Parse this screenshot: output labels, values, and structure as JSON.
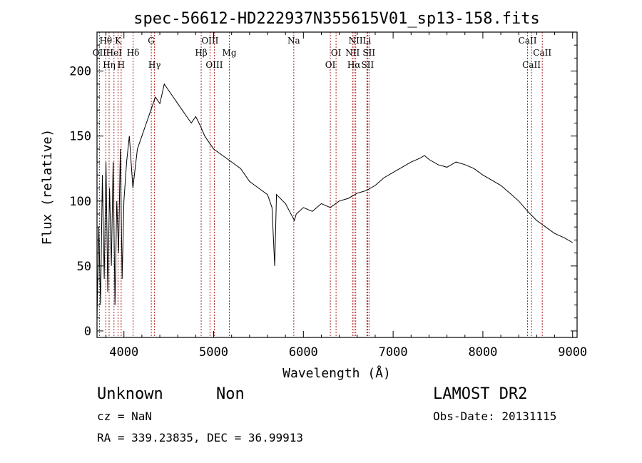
{
  "chart_data": {
    "type": "line",
    "title": "spec-56612-HD222937N355615V01_sp13-158.fits",
    "xlabel": "Wavelength (Å)",
    "ylabel": "Flux (relative)",
    "xlim": [
      3700,
      9050
    ],
    "ylim": [
      -5,
      230
    ],
    "xticks": [
      4000,
      5000,
      6000,
      7000,
      8000,
      9000
    ],
    "yticks": [
      0,
      50,
      100,
      150,
      200
    ],
    "grid": false,
    "legend": "none",
    "line_color": "#000000",
    "marker_color": "#b22222",
    "series": [
      {
        "x": [
          3700,
          3720,
          3740,
          3760,
          3780,
          3800,
          3820,
          3840,
          3860,
          3880,
          3900,
          3920,
          3940,
          3960,
          3980,
          4000,
          4030,
          4060,
          4100,
          4150,
          4200,
          4250,
          4300,
          4350,
          4400,
          4450,
          4500,
          4550,
          4600,
          4650,
          4700,
          4750,
          4800,
          4850,
          4900,
          4950,
          5000,
          5100,
          5200,
          5300,
          5400,
          5500,
          5600,
          5650,
          5680,
          5700,
          5800,
          5900,
          5920,
          6000,
          6100,
          6200,
          6300,
          6400,
          6500,
          6600,
          6700,
          6800,
          6900,
          7000,
          7100,
          7200,
          7300,
          7350,
          7400,
          7500,
          7600,
          7700,
          7800,
          7900,
          8000,
          8100,
          8200,
          8300,
          8400,
          8500,
          8600,
          8700,
          8800,
          8900,
          9000
        ],
        "y": [
          10,
          80,
          20,
          120,
          40,
          130,
          30,
          110,
          50,
          130,
          20,
          100,
          60,
          140,
          40,
          100,
          130,
          150,
          110,
          140,
          150,
          160,
          170,
          180,
          175,
          190,
          185,
          180,
          175,
          170,
          165,
          160,
          165,
          158,
          150,
          145,
          140,
          135,
          130,
          125,
          115,
          110,
          105,
          95,
          50,
          105,
          98,
          85,
          90,
          95,
          92,
          98,
          95,
          100,
          102,
          106,
          108,
          112,
          118,
          122,
          126,
          130,
          133,
          135,
          132,
          128,
          126,
          130,
          128,
          125,
          120,
          116,
          112,
          106,
          100,
          92,
          85,
          80,
          75,
          72,
          68
        ]
      }
    ],
    "line_markers": [
      {
        "label": "OII",
        "x": 3727,
        "row": 2
      },
      {
        "label": "Hθ",
        "x": 3798,
        "row": 1
      },
      {
        "label": "HeI",
        "x": 3889,
        "row": 2
      },
      {
        "label": "Hη",
        "x": 3835,
        "row": 3
      },
      {
        "label": "K",
        "x": 3934,
        "row": 1
      },
      {
        "label": "H",
        "x": 3969,
        "row": 3
      },
      {
        "label": "Hδ",
        "x": 4102,
        "row": 2
      },
      {
        "label": "G",
        "x": 4305,
        "row": 1
      },
      {
        "label": "Hγ",
        "x": 4341,
        "row": 3
      },
      {
        "label": "OIII",
        "x": 4959,
        "row": 1
      },
      {
        "label": "Hβ",
        "x": 4861,
        "row": 2
      },
      {
        "label": "OIII",
        "x": 5007,
        "row": 3
      },
      {
        "label": "Mg",
        "x": 5175,
        "row": 2
      },
      {
        "label": "Na",
        "x": 5893,
        "row": 1
      },
      {
        "label": "OI",
        "x": 6364,
        "row": 2
      },
      {
        "label": "OI",
        "x": 6300,
        "row": 3
      },
      {
        "label": "NII",
        "x": 6583,
        "row": 1
      },
      {
        "label": "NII",
        "x": 6548,
        "row": 2
      },
      {
        "label": "Hα",
        "x": 6563,
        "row": 3
      },
      {
        "label": "Li",
        "x": 6708,
        "row": 1
      },
      {
        "label": "SII",
        "x": 6731,
        "row": 2
      },
      {
        "label": "SII",
        "x": 6716,
        "row": 3
      },
      {
        "label": "CaII",
        "x": 8498,
        "row": 1
      },
      {
        "label": "CaII",
        "x": 8662,
        "row": 2
      },
      {
        "label": "CaII",
        "x": 8542,
        "row": 3
      }
    ]
  },
  "info": {
    "object_class": "Unknown",
    "object_subclass": "Non",
    "survey": "LAMOST DR2",
    "cz": "cz = NaN",
    "obs_date": "Obs-Date: 20131115",
    "radec": "RA = 339.23835, DEC =  36.99913"
  }
}
